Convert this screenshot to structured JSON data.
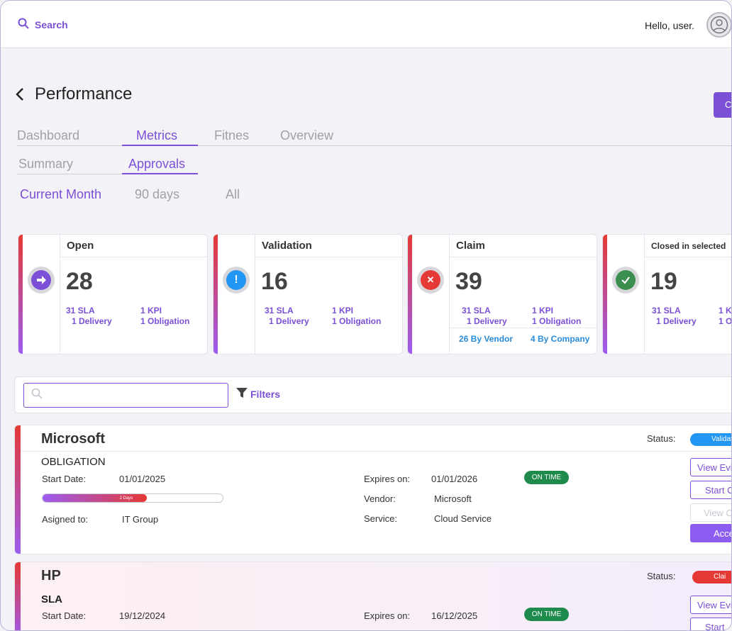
{
  "header": {
    "search_label": "Search",
    "greeting": "Hello, user."
  },
  "page": {
    "title": "Performance",
    "corner_button": "C"
  },
  "tabs_primary": [
    {
      "label": "Dashboard",
      "active": false
    },
    {
      "label": "Metrics",
      "active": true
    },
    {
      "label": "Fitnes",
      "active": false
    },
    {
      "label": "Overview",
      "active": false
    }
  ],
  "tabs_secondary": [
    {
      "label": "Summary",
      "active": false
    },
    {
      "label": "Approvals",
      "active": true
    }
  ],
  "periods": [
    {
      "label": "Current Month",
      "active": true
    },
    {
      "label": "90 days",
      "active": false
    },
    {
      "label": "All",
      "active": false
    }
  ],
  "cards": [
    {
      "title": "Open",
      "count": "28",
      "icon": "arrow-right-icon",
      "color": "#7b4fd6",
      "sla": "31 SLA",
      "kpi": "1 KPI",
      "delivery": "1 Delivery",
      "obligation": "1 Obligation"
    },
    {
      "title": "Validation",
      "count": "16",
      "icon": "exclamation-icon",
      "color": "#2196f3",
      "sla": "31 SLA",
      "kpi": "1 KPI",
      "delivery": "1 Delivery",
      "obligation": "1 Obligation"
    },
    {
      "title": "Claim",
      "count": "39",
      "icon": "x-icon",
      "color": "#e53935",
      "sla": "31 SLA",
      "kpi": "1 KPI",
      "delivery": "1 Delivery",
      "obligation": "1 Obligation",
      "by_vendor": "26 By Vendor",
      "by_company": "4 By Company"
    },
    {
      "title": "Closed in selected",
      "count": "19",
      "icon": "check-icon",
      "color": "#3a8f4f",
      "sla": "31 SLA",
      "kpi": "1 K",
      "delivery": "1 Delivery",
      "obligation": "1 O"
    }
  ],
  "filter": {
    "placeholder": "",
    "filters_label": "Filters"
  },
  "rows": [
    {
      "company": "Microsoft",
      "status_label": "Status:",
      "status": "Validat",
      "status_color": "#2196f3",
      "type": "OBLIGATION",
      "start_label": "Start Date:",
      "start": "01/01/2025",
      "progress_label": "2 Days",
      "progress": 0.58,
      "assigned_label": "Asigned to:",
      "assigned": "IT Group",
      "expires_label": "Expires on:",
      "expires": "01/01/2026",
      "badge": "ON TIME",
      "vendor_label": "Vendor:",
      "vendor": "Microsoft",
      "service_label": "Service:",
      "service": "Cloud Service",
      "buttons": [
        "View Evi",
        "Start C",
        "View C",
        "Acce"
      ]
    },
    {
      "company": "HP",
      "status_label": "Status:",
      "status": "Clai",
      "status_color": "#e53935",
      "type": "SLA",
      "start_label": "Start Date:",
      "start": "19/12/2024",
      "expires_label": "Expires on:",
      "expires": "16/12/2025",
      "badge": "ON TIME",
      "buttons": [
        "View Evi",
        "Start"
      ]
    }
  ]
}
